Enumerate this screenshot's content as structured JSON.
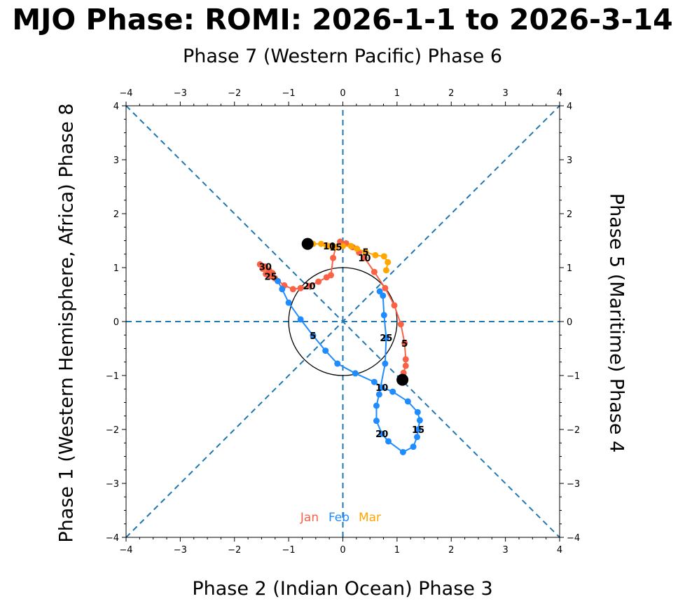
{
  "title": "MJO Phase: ROMI: 2026-1-1 to 2026-3-14",
  "axis_labels": {
    "top": "Phase 7 (Western Pacific) Phase 6",
    "bottom": "Phase 2 (Indian Ocean) Phase 3",
    "left": "Phase 1 (Western Hemisphere, Africa) Phase 8",
    "right": "Phase 5 (Maritime) Phase 4"
  },
  "colors": {
    "jan": "#fa6145",
    "feb": "#1e8cff",
    "mar": "#ffa600",
    "guide": "#1f77b4"
  },
  "chart_data": {
    "type": "line",
    "title": "MJO Phase: ROMI: 2026-1-1 to 2026-3-14",
    "xlim": [
      -4,
      4
    ],
    "ylim": [
      -4,
      4
    ],
    "ticks": [
      "−4",
      "−3",
      "−2",
      "−1",
      "0",
      "1",
      "2",
      "3",
      "4"
    ],
    "tick_values": [
      -4,
      -3,
      -2,
      -1,
      0,
      1,
      2,
      3,
      4
    ],
    "legend": [
      "Jan",
      "Feb",
      "Mar"
    ],
    "series": [
      {
        "name": "Jan",
        "color": "#fa6145",
        "points": [
          [
            1.1,
            -1.08
          ],
          [
            1.12,
            -0.95
          ],
          [
            1.16,
            -0.82
          ],
          [
            1.16,
            -0.7
          ],
          [
            1.14,
            -0.4
          ],
          [
            1.07,
            -0.05
          ],
          [
            0.95,
            0.3
          ],
          [
            0.78,
            0.62
          ],
          [
            0.58,
            0.92
          ],
          [
            0.4,
            1.18
          ],
          [
            0.3,
            1.28
          ],
          [
            0.18,
            1.38
          ],
          [
            0.06,
            1.45
          ],
          [
            -0.05,
            1.48
          ],
          [
            -0.13,
            1.38
          ],
          [
            -0.18,
            1.18
          ],
          [
            -0.22,
            0.86
          ],
          [
            -0.3,
            0.82
          ],
          [
            -0.45,
            0.74
          ],
          [
            -0.62,
            0.66
          ],
          [
            -0.78,
            0.62
          ],
          [
            -0.92,
            0.6
          ],
          [
            -1.08,
            0.67
          ],
          [
            -1.25,
            0.8
          ],
          [
            -1.33,
            0.84
          ],
          [
            -1.42,
            0.88
          ],
          [
            -1.3,
            0.9
          ],
          [
            -1.48,
            0.98
          ],
          [
            -1.53,
            1.06
          ],
          [
            -1.43,
            1.02
          ],
          [
            -1.36,
            0.95
          ]
        ],
        "labels": [
          {
            "i": 4,
            "text": "5"
          },
          {
            "i": 9,
            "text": "10"
          },
          {
            "i": 14,
            "text": "15"
          },
          {
            "i": 19,
            "text": "20"
          },
          {
            "i": 24,
            "text": "25"
          },
          {
            "i": 29,
            "text": "30"
          }
        ]
      },
      {
        "name": "Feb",
        "color": "#1e8cff",
        "points": [
          [
            -1.2,
            0.75
          ],
          [
            -1.12,
            0.6
          ],
          [
            -1.0,
            0.35
          ],
          [
            -0.78,
            0.04
          ],
          [
            -0.55,
            -0.26
          ],
          [
            -0.32,
            -0.54
          ],
          [
            -0.1,
            -0.78
          ],
          [
            0.23,
            -0.96
          ],
          [
            0.58,
            -1.12
          ],
          [
            0.72,
            -1.22
          ],
          [
            0.92,
            -1.3
          ],
          [
            1.2,
            -1.48
          ],
          [
            1.38,
            -1.68
          ],
          [
            1.42,
            -1.83
          ],
          [
            1.39,
            -2.0
          ],
          [
            1.37,
            -2.14
          ],
          [
            1.3,
            -2.32
          ],
          [
            1.11,
            -2.42
          ],
          [
            0.84,
            -2.22
          ],
          [
            0.72,
            -2.08
          ],
          [
            0.62,
            -1.84
          ],
          [
            0.62,
            -1.56
          ],
          [
            0.67,
            -1.35
          ],
          [
            0.78,
            -0.78
          ],
          [
            0.8,
            -0.3
          ],
          [
            0.76,
            0.12
          ],
          [
            0.74,
            0.48
          ],
          [
            0.68,
            0.56
          ]
        ],
        "labels": [
          {
            "i": 4,
            "text": "5"
          },
          {
            "i": 9,
            "text": "10"
          },
          {
            "i": 14,
            "text": "15"
          },
          {
            "i": 19,
            "text": "20"
          },
          {
            "i": 24,
            "text": "25"
          }
        ]
      },
      {
        "name": "Mar",
        "color": "#ffa600",
        "points": [
          [
            0.8,
            0.95
          ],
          [
            0.83,
            1.1
          ],
          [
            0.76,
            1.21
          ],
          [
            0.6,
            1.23
          ],
          [
            0.42,
            1.29
          ],
          [
            0.26,
            1.35
          ],
          [
            0.15,
            1.4
          ],
          [
            0.0,
            1.4
          ],
          [
            -0.15,
            1.38
          ],
          [
            -0.25,
            1.4
          ],
          [
            -0.3,
            1.41
          ],
          [
            -0.4,
            1.44
          ],
          [
            -0.55,
            1.44
          ],
          [
            -0.65,
            1.44
          ]
        ],
        "labels": [
          {
            "i": 4,
            "text": "5"
          },
          {
            "i": 9,
            "text": "10"
          }
        ]
      }
    ],
    "markers": {
      "start": [
        1.1,
        -1.08
      ],
      "end": [
        -0.65,
        1.44
      ]
    },
    "unit_circle_radius": 1
  }
}
